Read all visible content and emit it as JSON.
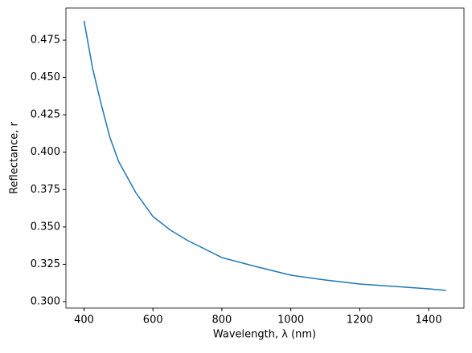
{
  "chart_data": {
    "type": "line",
    "xlabel": "Wavelength, λ (nm)",
    "ylabel": "Reflectance, r",
    "x": [
      400,
      425,
      450,
      475,
      500,
      550,
      600,
      650,
      700,
      800,
      900,
      1000,
      1100,
      1200,
      1300,
      1400,
      1450
    ],
    "series": [
      {
        "color": "#1f77b4",
        "values": [
          0.488,
          0.456,
          0.432,
          0.41,
          0.394,
          0.373,
          0.357,
          0.348,
          0.341,
          0.3295,
          0.3234,
          0.3177,
          0.3145,
          0.3118,
          0.3102,
          0.3086,
          0.3075
        ]
      }
    ],
    "xlim": [
      347.5,
      1502.5
    ],
    "xticks": [
      400,
      600,
      800,
      1000,
      1200,
      1400
    ],
    "ylim": [
      0.2957,
      0.4965
    ],
    "yticks": [
      {
        "value": 0.3,
        "label": "0.300"
      },
      {
        "value": 0.325,
        "label": "0.325"
      },
      {
        "value": 0.35,
        "label": "0.350"
      },
      {
        "value": 0.375,
        "label": "0.375"
      },
      {
        "value": 0.4,
        "label": "0.400"
      },
      {
        "value": 0.425,
        "label": "0.425"
      },
      {
        "value": 0.45,
        "label": "0.450"
      },
      {
        "value": 0.475,
        "label": "0.475"
      }
    ],
    "grid": false
  }
}
